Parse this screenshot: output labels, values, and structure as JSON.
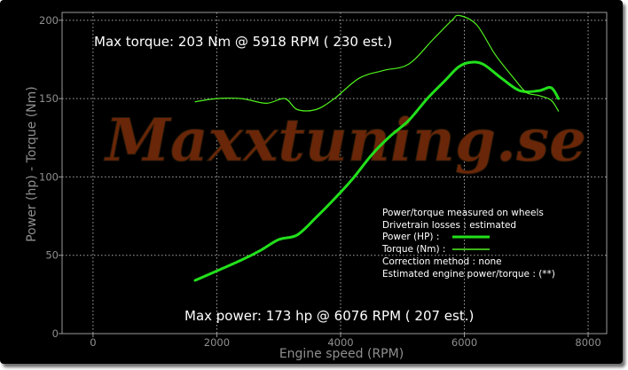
{
  "chart_data": {
    "type": "line",
    "x_range": [
      -500,
      8300
    ],
    "y_range": [
      0,
      205
    ],
    "x_ticks": [
      0,
      2000,
      4000,
      6000,
      8000
    ],
    "y_ticks": [
      0,
      50,
      100,
      150,
      200
    ],
    "xlabel": "Engine speed (RPM)",
    "ylabel": "Power (hp)  - Torque (Nm)",
    "grid": true,
    "watermark": "Maxxtuning.se",
    "max_torque_text": "Max torque:  203 Nm @  5918 RPM ( 230 est.)",
    "max_power_text": "Max power:   173 hp @  6076 RPM ( 207 est.)",
    "legend": {
      "placement": "lower-right",
      "lines": [
        "Power/torque measured on wheels",
        "Drivetrain losses : estimated",
        "Power (HP)   :",
        "Torque (Nm)  :",
        "Correction method : none",
        "Estimated engine power/torque : (**)"
      ]
    },
    "series": [
      {
        "name": "Power (HP)",
        "color": "#22e01b",
        "points": [
          [
            1650,
            34
          ],
          [
            2000,
            40
          ],
          [
            2400,
            47
          ],
          [
            2700,
            53
          ],
          [
            3000,
            60
          ],
          [
            3300,
            63
          ],
          [
            3600,
            74
          ],
          [
            3900,
            86
          ],
          [
            4200,
            99
          ],
          [
            4500,
            114
          ],
          [
            4800,
            126
          ],
          [
            5100,
            136
          ],
          [
            5400,
            150
          ],
          [
            5700,
            162
          ],
          [
            5900,
            170
          ],
          [
            6076,
            173
          ],
          [
            6300,
            172
          ],
          [
            6600,
            163
          ],
          [
            6900,
            155
          ],
          [
            7200,
            155
          ],
          [
            7400,
            157
          ],
          [
            7520,
            150
          ]
        ]
      },
      {
        "name": "Torque (Nm)",
        "color": "#4ff11d",
        "points": [
          [
            1650,
            148
          ],
          [
            2000,
            150
          ],
          [
            2400,
            150
          ],
          [
            2800,
            147
          ],
          [
            3100,
            150
          ],
          [
            3300,
            143
          ],
          [
            3600,
            143
          ],
          [
            3900,
            150
          ],
          [
            4300,
            163
          ],
          [
            4700,
            168
          ],
          [
            5100,
            172
          ],
          [
            5500,
            188
          ],
          [
            5800,
            200
          ],
          [
            5918,
            203
          ],
          [
            6200,
            197
          ],
          [
            6500,
            178
          ],
          [
            6800,
            163
          ],
          [
            7000,
            154
          ],
          [
            7200,
            152
          ],
          [
            7400,
            149
          ],
          [
            7520,
            142
          ]
        ]
      }
    ]
  }
}
